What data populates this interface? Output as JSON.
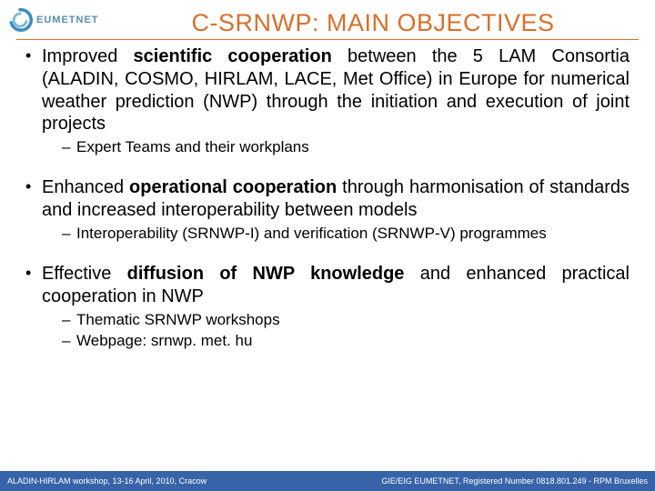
{
  "logo": {
    "text": "EUMETNET",
    "text_color": "#5a8db0",
    "swirl_color": "#3a8cc4"
  },
  "title": {
    "text": "C-SRNWP: MAIN OBJECTIVES",
    "color": "#d96f2a",
    "fontsize": 27,
    "underline_color": "#d96f2a"
  },
  "body": {
    "fontsize": 20,
    "sub_fontsize": 17,
    "text_color": "#000000",
    "align": "justify"
  },
  "bullets": [
    {
      "parts": [
        {
          "t": "Improved ",
          "b": false
        },
        {
          "t": "scientific  cooperation",
          "b": true
        },
        {
          "t": " between the 5 LAM Consortia (ALADIN, COSMO, HIRLAM, LACE, Met Office) in Europe for numerical weather prediction (NWP) through the initiation and execution of joint projects",
          "b": false
        }
      ],
      "subs": [
        "Expert Teams and their workplans"
      ]
    },
    {
      "parts": [
        {
          "t": "Enhanced ",
          "b": false
        },
        {
          "t": "operational cooperation",
          "b": true
        },
        {
          "t": " through harmonisation of standards and increased interoperability between models",
          "b": false
        }
      ],
      "subs": [
        "Interoperability (SRNWP-I) and verification (SRNWP-V) programmes"
      ]
    },
    {
      "parts": [
        {
          "t": "Effective ",
          "b": false
        },
        {
          "t": "diffusion of NWP knowledge",
          "b": true
        },
        {
          "t": " and enhanced practical cooperation in NWP",
          "b": false
        }
      ],
      "subs": [
        "Thematic SRNWP workshops",
        "Webpage: srnwp. met. hu"
      ]
    }
  ],
  "footer": {
    "left": "ALADIN-HIRLAM workshop, 13-16 April, 2010, Cracow",
    "right": "GIE/EIG EUMETNET, Registered Number 0818.801.249 - RPM Bruxelles",
    "bg_color": "#3764a8",
    "text_color": "#ffffff",
    "fontsize": 9
  }
}
